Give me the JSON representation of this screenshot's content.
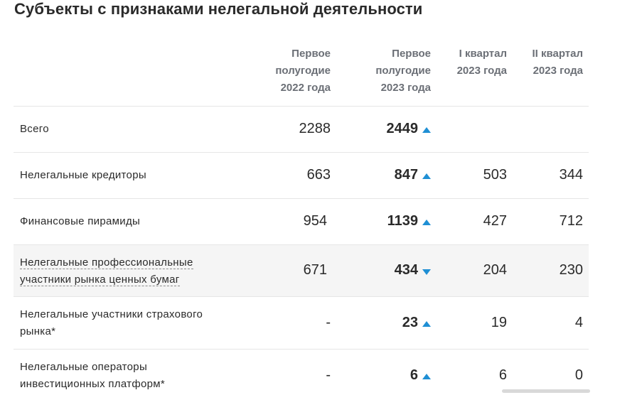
{
  "title": "Субъекты с признаками нелегальной деятельности",
  "columns": [
    "Первое\nполугодие\n2022 года",
    "Первое\nполугодие\n2023 года",
    "I квартал\n2023 года",
    "II квартал\n2023 года"
  ],
  "rows": [
    {
      "label": "Всего",
      "h1_2022": "2288",
      "h1_2023": "2449",
      "trend": "up",
      "q1_2023": "",
      "q2_2023": ""
    },
    {
      "label": "Нелегальные кредиторы",
      "h1_2022": "663",
      "h1_2023": "847",
      "trend": "up",
      "q1_2023": "503",
      "q2_2023": "344"
    },
    {
      "label": "Финансовые пирамиды",
      "h1_2022": "954",
      "h1_2023": "1139",
      "trend": "up",
      "q1_2023": "427",
      "q2_2023": "712"
    },
    {
      "label_line1": "Нелегальные профессиональные",
      "label_line2": "участники рынка ценных бумаг",
      "h1_2022": "671",
      "h1_2023": "434",
      "trend": "down",
      "q1_2023": "204",
      "q2_2023": "230"
    },
    {
      "label_line1": "Нелегальные участники страхового",
      "label_line2": "рынка*",
      "h1_2022": "-",
      "h1_2023": "23",
      "trend": "up",
      "q1_2023": "19",
      "q2_2023": "4"
    },
    {
      "label_line1": "Нелегальные операторы",
      "label_line2": "инвестиционных платформ*",
      "h1_2022": "-",
      "h1_2023": "6",
      "trend": "up",
      "q1_2023": "6",
      "q2_2023": "0"
    }
  ],
  "colors": {
    "accent": "#1f8fd4",
    "header_text": "#6b6f76",
    "shaded_row": "#f5f5f5"
  }
}
